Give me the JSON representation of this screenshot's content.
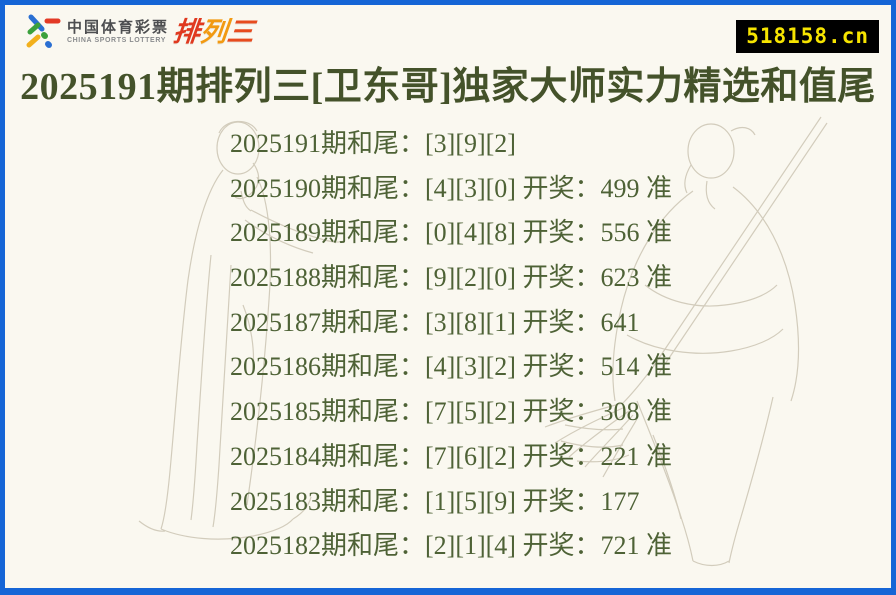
{
  "header": {
    "logo": {
      "brand_cn": "中国体育彩票",
      "brand_en": "CHINA SPORTS LOTTERY",
      "product": "排列三",
      "product_colors": [
        "#e0391f",
        "#f29a12",
        "#e74b1e"
      ]
    },
    "domain": "518158.cn",
    "domain_badge": {
      "bg": "#000000",
      "text_color": "#f6e400"
    }
  },
  "title": "2025191期排列三[卫东哥]独家大师实力精选和值尾",
  "predictions": [
    {
      "period": "2025191",
      "picks": [
        "3",
        "9",
        "2"
      ],
      "draw": null,
      "accurate": false,
      "text": "2025191期和尾：[3][9][2]"
    },
    {
      "period": "2025190",
      "picks": [
        "4",
        "3",
        "0"
      ],
      "draw": "499",
      "accurate": true,
      "text": "2025190期和尾：[4][3][0] 开奖：499 准"
    },
    {
      "period": "2025189",
      "picks": [
        "0",
        "4",
        "8"
      ],
      "draw": "556",
      "accurate": true,
      "text": "2025189期和尾：[0][4][8] 开奖：556 准"
    },
    {
      "period": "2025188",
      "picks": [
        "9",
        "2",
        "0"
      ],
      "draw": "623",
      "accurate": true,
      "text": "2025188期和尾：[9][2][0] 开奖：623 准"
    },
    {
      "period": "2025187",
      "picks": [
        "3",
        "8",
        "1"
      ],
      "draw": "641",
      "accurate": false,
      "text": "2025187期和尾：[3][8][1] 开奖：641"
    },
    {
      "period": "2025186",
      "picks": [
        "4",
        "3",
        "2"
      ],
      "draw": "514",
      "accurate": true,
      "text": "2025186期和尾：[4][3][2] 开奖：514 准"
    },
    {
      "period": "2025185",
      "picks": [
        "7",
        "5",
        "2"
      ],
      "draw": "308",
      "accurate": true,
      "text": "2025185期和尾：[7][5][2] 开奖：308 准"
    },
    {
      "period": "2025184",
      "picks": [
        "7",
        "6",
        "2"
      ],
      "draw": "221",
      "accurate": true,
      "text": "2025184期和尾：[7][6][2] 开奖：221 准"
    },
    {
      "period": "2025183",
      "picks": [
        "1",
        "5",
        "9"
      ],
      "draw": "177",
      "accurate": false,
      "text": "2025183期和尾：[1][5][9] 开奖：177"
    },
    {
      "period": "2025182",
      "picks": [
        "2",
        "1",
        "4"
      ],
      "draw": "721",
      "accurate": true,
      "text": "2025182期和尾：[2][1][4] 开奖：721 准"
    }
  ],
  "colors": {
    "page_background": "#faf8f0",
    "border_blue": "#1565d6",
    "title_text": "#44522a",
    "body_text": "#4e6236",
    "sketch_line": "#ccc5b3"
  }
}
